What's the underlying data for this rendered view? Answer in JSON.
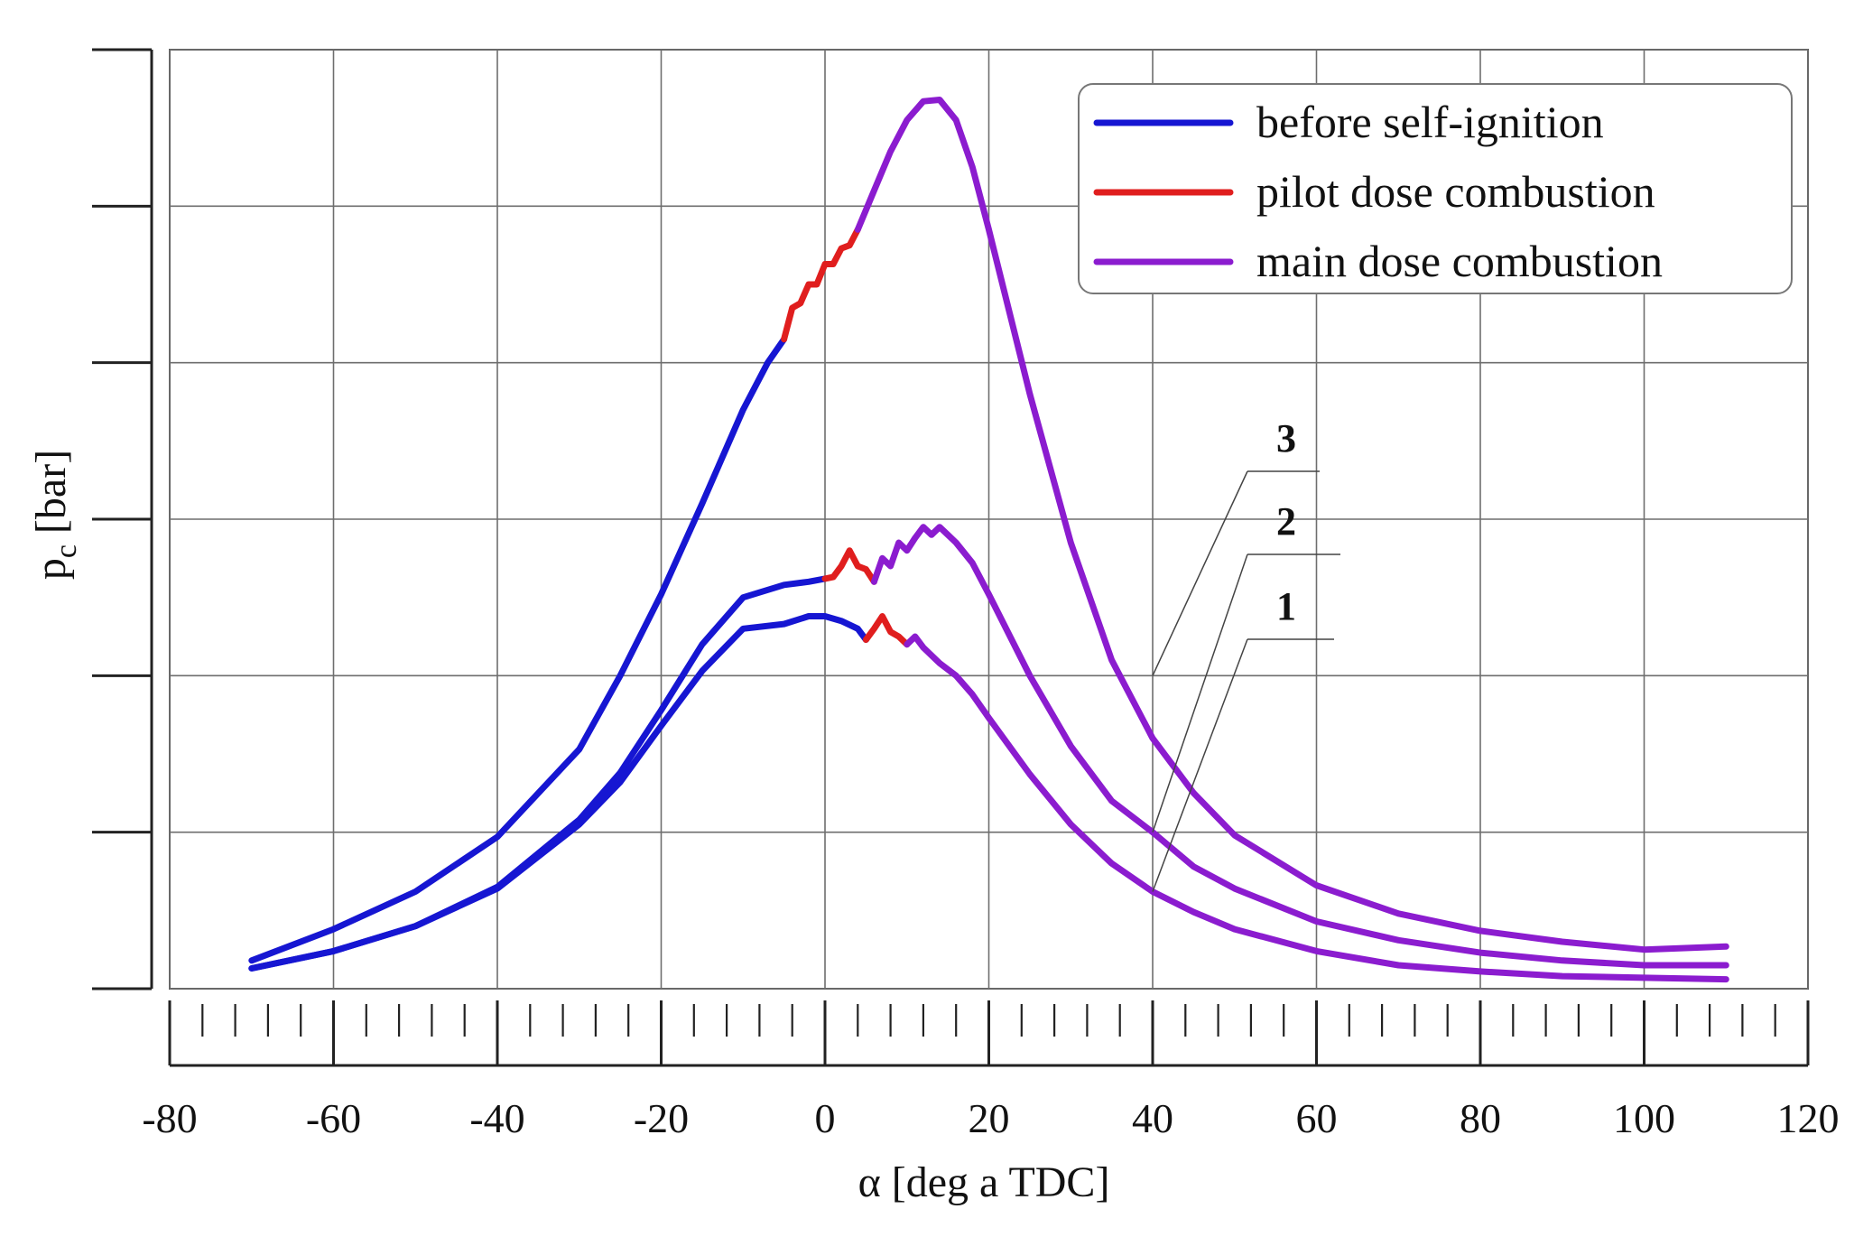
{
  "chart_data": {
    "type": "line",
    "xlabel": "α [deg a TDC]",
    "ylabel_main": "p",
    "ylabel_sub": "c",
    "ylabel_unit": " [bar]",
    "xlim": [
      -80,
      120
    ],
    "ylim": [
      0,
      6
    ],
    "x_ticks": [
      -80,
      -60,
      -40,
      -20,
      0,
      20,
      40,
      60,
      80,
      100,
      120
    ],
    "x_tick_labels": [
      "-80",
      "-60",
      "-40",
      "-20",
      "0",
      "20",
      "40",
      "60",
      "80",
      "100",
      "120"
    ],
    "y_gridlines": [
      0,
      1,
      2,
      3,
      4,
      5,
      6
    ],
    "y_tick_labels_shown": false,
    "grid": true,
    "legend_position": "top-right",
    "legend": [
      {
        "label": "before self-ignition",
        "color": "#1616d2"
      },
      {
        "label": "pilot dose combustion",
        "color": "#e01e1e"
      },
      {
        "label": "main dose combustion",
        "color": "#8b1ccf"
      }
    ],
    "curves": [
      {
        "label": "3",
        "segments": [
          {
            "phase": "before self-ignition",
            "color": "#1616d2",
            "x": [
              -70,
              -60,
              -50,
              -40,
              -30,
              -25,
              -20,
              -15,
              -10,
              -7,
              -5
            ],
            "y": [
              0.18,
              0.38,
              0.62,
              0.97,
              1.53,
              2.0,
              2.52,
              3.1,
              3.7,
              4.0,
              4.15
            ]
          },
          {
            "phase": "pilot dose combustion",
            "color": "#e01e1e",
            "x": [
              -5,
              -4,
              -3,
              -2,
              -1,
              0,
              1,
              2,
              3,
              4
            ],
            "y": [
              4.15,
              4.35,
              4.38,
              4.5,
              4.5,
              4.63,
              4.63,
              4.73,
              4.75,
              4.85
            ]
          },
          {
            "phase": "main dose combustion",
            "color": "#8b1ccf",
            "x": [
              4,
              6,
              8,
              10,
              12,
              14,
              16,
              18,
              20,
              25,
              30,
              35,
              40,
              45,
              50,
              60,
              70,
              80,
              90,
              100,
              110
            ],
            "y": [
              4.85,
              5.1,
              5.35,
              5.55,
              5.67,
              5.68,
              5.55,
              5.25,
              4.85,
              3.8,
              2.85,
              2.1,
              1.6,
              1.25,
              0.98,
              0.66,
              0.48,
              0.37,
              0.3,
              0.25,
              0.27
            ]
          }
        ]
      },
      {
        "label": "2",
        "segments": [
          {
            "phase": "before self-ignition",
            "color": "#1616d2",
            "x": [
              -70,
              -60,
              -50,
              -40,
              -30,
              -25,
              -20,
              -15,
              -10,
              -5,
              -2,
              0
            ],
            "y": [
              0.13,
              0.24,
              0.4,
              0.65,
              1.08,
              1.38,
              1.78,
              2.2,
              2.5,
              2.58,
              2.6,
              2.62
            ]
          },
          {
            "phase": "pilot dose combustion",
            "color": "#e01e1e",
            "x": [
              0,
              1,
              2,
              3,
              4,
              5,
              6
            ],
            "y": [
              2.62,
              2.63,
              2.7,
              2.8,
              2.7,
              2.68,
              2.6
            ]
          },
          {
            "phase": "main dose combustion",
            "color": "#8b1ccf",
            "x": [
              6,
              7,
              8,
              9,
              10,
              11,
              12,
              13,
              14,
              15,
              16,
              18,
              20,
              25,
              30,
              35,
              40,
              45,
              50,
              60,
              70,
              80,
              90,
              100,
              110
            ],
            "y": [
              2.6,
              2.75,
              2.7,
              2.85,
              2.8,
              2.88,
              2.95,
              2.9,
              2.95,
              2.9,
              2.85,
              2.72,
              2.52,
              2.0,
              1.55,
              1.2,
              1.0,
              0.78,
              0.64,
              0.43,
              0.31,
              0.23,
              0.18,
              0.15,
              0.15
            ]
          }
        ]
      },
      {
        "label": "1",
        "segments": [
          {
            "phase": "before self-ignition",
            "color": "#1616d2",
            "x": [
              -70,
              -60,
              -50,
              -40,
              -30,
              -25,
              -20,
              -15,
              -10,
              -5,
              -2,
              0,
              2,
              4,
              5
            ],
            "y": [
              0.13,
              0.24,
              0.4,
              0.64,
              1.05,
              1.32,
              1.68,
              2.03,
              2.3,
              2.33,
              2.38,
              2.38,
              2.35,
              2.3,
              2.23
            ]
          },
          {
            "phase": "pilot dose combustion",
            "color": "#e01e1e",
            "x": [
              5,
              6,
              7,
              8,
              9,
              10
            ],
            "y": [
              2.23,
              2.3,
              2.38,
              2.28,
              2.25,
              2.2
            ]
          },
          {
            "phase": "main dose combustion",
            "color": "#8b1ccf",
            "x": [
              10,
              11,
              12,
              14,
              16,
              18,
              20,
              25,
              30,
              35,
              40,
              45,
              50,
              60,
              70,
              80,
              90,
              100,
              110
            ],
            "y": [
              2.2,
              2.25,
              2.18,
              2.08,
              2.0,
              1.88,
              1.73,
              1.37,
              1.05,
              0.8,
              0.62,
              0.49,
              0.38,
              0.24,
              0.15,
              0.11,
              0.08,
              0.07,
              0.06
            ]
          }
        ]
      }
    ]
  }
}
